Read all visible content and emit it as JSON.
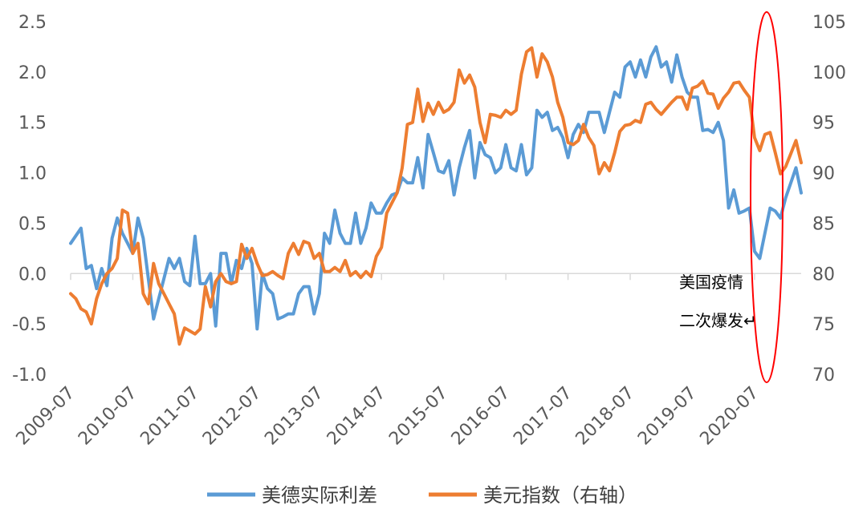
{
  "chart_data": {
    "type": "line",
    "title": "",
    "xlabel": "",
    "ylabel": "",
    "x_tick_labels": [
      "2009-07",
      "2010-07",
      "2011-07",
      "2012-07",
      "2013-07",
      "2014-07",
      "2015-07",
      "2016-07",
      "2017-07",
      "2018-07",
      "2019-07",
      "2020-07"
    ],
    "y_left": {
      "lim": [
        -1.0,
        2.5
      ],
      "ticks": [
        "2.5",
        "2.0",
        "1.5",
        "1.0",
        "0.5",
        "0.0",
        "-0.5",
        "-1.0"
      ]
    },
    "y_right": {
      "lim": [
        70,
        105
      ],
      "ticks": [
        "105",
        "100",
        "95",
        "90",
        "85",
        "80",
        "75",
        "70"
      ]
    },
    "legend_position": "bottom",
    "gridlines": false,
    "series": [
      {
        "name": "美德实际利差",
        "axis": "left",
        "color": "#5B9BD5",
        "points": [
          [
            "2009-07",
            0.3
          ],
          [
            "2009-09",
            0.45
          ],
          [
            "2009-10",
            0.05
          ],
          [
            "2009-11",
            0.08
          ],
          [
            "2009-12",
            -0.15
          ],
          [
            "2010-01",
            0.05
          ],
          [
            "2010-02",
            -0.12
          ],
          [
            "2010-03",
            0.35
          ],
          [
            "2010-04",
            0.55
          ],
          [
            "2010-05",
            0.4
          ],
          [
            "2010-06",
            0.3
          ],
          [
            "2010-07",
            0.2
          ],
          [
            "2010-08",
            0.55
          ],
          [
            "2010-09",
            0.35
          ],
          [
            "2010-10",
            -0.05
          ],
          [
            "2010-11",
            -0.45
          ],
          [
            "2010-12",
            -0.25
          ],
          [
            "2011-01",
            -0.05
          ],
          [
            "2011-02",
            0.15
          ],
          [
            "2011-03",
            0.05
          ],
          [
            "2011-04",
            0.15
          ],
          [
            "2011-05",
            -0.08
          ],
          [
            "2011-06",
            -0.12
          ],
          [
            "2011-07",
            0.37
          ],
          [
            "2011-08",
            -0.1
          ],
          [
            "2011-09",
            -0.1
          ],
          [
            "2011-10",
            0.0
          ],
          [
            "2011-11",
            -0.52
          ],
          [
            "2011-12",
            0.2
          ],
          [
            "2012-01",
            0.2
          ],
          [
            "2012-02",
            -0.1
          ],
          [
            "2012-03",
            0.13
          ],
          [
            "2012-04",
            0.05
          ],
          [
            "2012-05",
            0.25
          ],
          [
            "2012-06",
            0.1
          ],
          [
            "2012-07",
            -0.55
          ],
          [
            "2012-08",
            0.0
          ],
          [
            "2012-09",
            -0.15
          ],
          [
            "2012-10",
            -0.2
          ],
          [
            "2012-11",
            -0.45
          ],
          [
            "2012-12",
            -0.43
          ],
          [
            "2013-01",
            -0.4
          ],
          [
            "2013-02",
            -0.4
          ],
          [
            "2013-03",
            -0.2
          ],
          [
            "2013-04",
            -0.13
          ],
          [
            "2013-05",
            -0.13
          ],
          [
            "2013-06",
            -0.4
          ],
          [
            "2013-07",
            -0.2
          ],
          [
            "2013-08",
            0.4
          ],
          [
            "2013-09",
            0.3
          ],
          [
            "2013-10",
            0.63
          ],
          [
            "2013-11",
            0.4
          ],
          [
            "2013-12",
            0.3
          ],
          [
            "2014-01",
            0.3
          ],
          [
            "2014-02",
            0.6
          ],
          [
            "2014-03",
            0.3
          ],
          [
            "2014-04",
            0.45
          ],
          [
            "2014-05",
            0.7
          ],
          [
            "2014-06",
            0.6
          ],
          [
            "2014-07",
            0.6
          ],
          [
            "2014-08",
            0.7
          ],
          [
            "2014-09",
            0.78
          ],
          [
            "2014-10",
            0.8
          ],
          [
            "2014-11",
            0.95
          ],
          [
            "2014-12",
            0.9
          ],
          [
            "2015-01",
            0.9
          ],
          [
            "2015-02",
            1.15
          ],
          [
            "2015-03",
            0.85
          ],
          [
            "2015-04",
            1.38
          ],
          [
            "2015-05",
            1.2
          ],
          [
            "2015-06",
            1.02
          ],
          [
            "2015-07",
            1.0
          ],
          [
            "2015-08",
            1.12
          ],
          [
            "2015-09",
            0.78
          ],
          [
            "2015-10",
            1.05
          ],
          [
            "2015-11",
            1.25
          ],
          [
            "2015-12",
            1.42
          ],
          [
            "2016-01",
            0.95
          ],
          [
            "2016-02",
            1.3
          ],
          [
            "2016-03",
            1.18
          ],
          [
            "2016-04",
            1.15
          ],
          [
            "2016-05",
            1.0
          ],
          [
            "2016-06",
            1.05
          ],
          [
            "2016-07",
            1.28
          ],
          [
            "2016-08",
            1.05
          ],
          [
            "2016-09",
            1.02
          ],
          [
            "2016-10",
            1.28
          ],
          [
            "2016-11",
            0.98
          ],
          [
            "2016-12",
            1.05
          ],
          [
            "2017-01",
            1.62
          ],
          [
            "2017-02",
            1.55
          ],
          [
            "2017-03",
            1.6
          ],
          [
            "2017-04",
            1.42
          ],
          [
            "2017-05",
            1.45
          ],
          [
            "2017-06",
            1.35
          ],
          [
            "2017-07",
            1.15
          ],
          [
            "2017-08",
            1.38
          ],
          [
            "2017-09",
            1.48
          ],
          [
            "2017-10",
            1.4
          ],
          [
            "2017-11",
            1.6
          ],
          [
            "2017-12",
            1.6
          ],
          [
            "2018-01",
            1.6
          ],
          [
            "2018-02",
            1.4
          ],
          [
            "2018-03",
            1.6
          ],
          [
            "2018-04",
            1.8
          ],
          [
            "2018-05",
            1.75
          ],
          [
            "2018-06",
            2.05
          ],
          [
            "2018-07",
            2.1
          ],
          [
            "2018-08",
            1.95
          ],
          [
            "2018-09",
            2.12
          ],
          [
            "2018-10",
            1.95
          ],
          [
            "2018-11",
            2.15
          ],
          [
            "2018-12",
            2.25
          ],
          [
            "2019-01",
            2.05
          ],
          [
            "2019-02",
            2.1
          ],
          [
            "2019-03",
            1.9
          ],
          [
            "2019-04",
            2.17
          ],
          [
            "2019-05",
            1.95
          ],
          [
            "2019-06",
            1.8
          ],
          [
            "2019-07",
            1.75
          ],
          [
            "2019-08",
            1.75
          ],
          [
            "2019-09",
            1.42
          ],
          [
            "2019-10",
            1.43
          ],
          [
            "2019-11",
            1.4
          ],
          [
            "2019-12",
            1.5
          ],
          [
            "2020-01",
            1.32
          ],
          [
            "2020-02",
            0.65
          ],
          [
            "2020-03",
            0.83
          ],
          [
            "2020-04",
            0.6
          ],
          [
            "2020-05",
            0.62
          ],
          [
            "2020-06",
            0.65
          ],
          [
            "2020-07",
            0.22
          ],
          [
            "2020-08",
            0.15
          ],
          [
            "2020-09",
            0.4
          ],
          [
            "2020-10",
            0.65
          ],
          [
            "2020-11",
            0.62
          ],
          [
            "2020-12",
            0.55
          ],
          [
            "2021-01",
            0.75
          ],
          [
            "2021-02",
            0.9
          ],
          [
            "2021-03",
            1.05
          ],
          [
            "2021-04",
            0.8
          ]
        ]
      },
      {
        "name": "美元指数（右轴）",
        "axis": "right",
        "color": "#ED7D31",
        "points": [
          [
            "2009-07",
            78.0
          ],
          [
            "2009-08",
            77.5
          ],
          [
            "2009-09",
            76.5
          ],
          [
            "2009-10",
            76.2
          ],
          [
            "2009-11",
            75.0
          ],
          [
            "2009-12",
            77.5
          ],
          [
            "2010-01",
            79.0
          ],
          [
            "2010-02",
            80.0
          ],
          [
            "2010-03",
            80.5
          ],
          [
            "2010-04",
            81.5
          ],
          [
            "2010-05",
            86.3
          ],
          [
            "2010-06",
            86.0
          ],
          [
            "2010-07",
            82.0
          ],
          [
            "2010-08",
            83.0
          ],
          [
            "2010-09",
            78.0
          ],
          [
            "2010-10",
            77.0
          ],
          [
            "2010-11",
            81.0
          ],
          [
            "2010-12",
            79.0
          ],
          [
            "2011-01",
            78.0
          ],
          [
            "2011-02",
            77.0
          ],
          [
            "2011-03",
            76.0
          ],
          [
            "2011-04",
            73.0
          ],
          [
            "2011-05",
            74.6
          ],
          [
            "2011-06",
            74.3
          ],
          [
            "2011-07",
            74.0
          ],
          [
            "2011-08",
            74.5
          ],
          [
            "2011-09",
            78.7
          ],
          [
            "2011-10",
            76.7
          ],
          [
            "2011-11",
            79.2
          ],
          [
            "2011-12",
            80.0
          ],
          [
            "2012-01",
            79.2
          ],
          [
            "2012-02",
            79.0
          ],
          [
            "2012-03",
            79.2
          ],
          [
            "2012-04",
            82.9
          ],
          [
            "2012-05",
            81.5
          ],
          [
            "2012-06",
            82.5
          ],
          [
            "2012-07",
            81.0
          ],
          [
            "2012-08",
            79.8
          ],
          [
            "2012-09",
            79.9
          ],
          [
            "2012-10",
            80.2
          ],
          [
            "2012-11",
            79.8
          ],
          [
            "2012-12",
            79.5
          ],
          [
            "2013-01",
            82.0
          ],
          [
            "2013-02",
            83.0
          ],
          [
            "2013-03",
            81.9
          ],
          [
            "2013-04",
            83.2
          ],
          [
            "2013-05",
            83.0
          ],
          [
            "2013-06",
            81.5
          ],
          [
            "2013-07",
            82.0
          ],
          [
            "2013-08",
            80.2
          ],
          [
            "2013-09",
            80.2
          ],
          [
            "2013-10",
            80.6
          ],
          [
            "2013-11",
            80.2
          ],
          [
            "2013-12",
            81.3
          ],
          [
            "2014-01",
            79.8
          ],
          [
            "2014-02",
            80.2
          ],
          [
            "2014-03",
            79.6
          ],
          [
            "2014-04",
            80.2
          ],
          [
            "2014-05",
            79.7
          ],
          [
            "2014-06",
            81.7
          ],
          [
            "2014-07",
            82.6
          ],
          [
            "2014-08",
            86.0
          ],
          [
            "2014-09",
            87.0
          ],
          [
            "2014-10",
            88.0
          ],
          [
            "2014-11",
            90.5
          ],
          [
            "2014-12",
            94.8
          ],
          [
            "2015-01",
            95.0
          ],
          [
            "2015-02",
            98.3
          ],
          [
            "2015-03",
            95.1
          ],
          [
            "2015-04",
            96.9
          ],
          [
            "2015-05",
            95.8
          ],
          [
            "2015-06",
            97.0
          ],
          [
            "2015-07",
            96.0
          ],
          [
            "2015-08",
            96.3
          ],
          [
            "2015-09",
            97.0
          ],
          [
            "2015-10",
            100.2
          ],
          [
            "2015-11",
            98.9
          ],
          [
            "2015-12",
            99.7
          ],
          [
            "2016-01",
            98.5
          ],
          [
            "2016-02",
            95.0
          ],
          [
            "2016-03",
            93.0
          ],
          [
            "2016-04",
            95.8
          ],
          [
            "2016-05",
            95.7
          ],
          [
            "2016-06",
            95.5
          ],
          [
            "2016-07",
            96.2
          ],
          [
            "2016-08",
            95.8
          ],
          [
            "2016-09",
            96.2
          ],
          [
            "2016-10",
            99.8
          ],
          [
            "2016-11",
            102.0
          ],
          [
            "2016-12",
            102.4
          ],
          [
            "2017-01",
            99.5
          ],
          [
            "2017-02",
            101.8
          ],
          [
            "2017-03",
            101.0
          ],
          [
            "2017-04",
            99.5
          ],
          [
            "2017-05",
            97.0
          ],
          [
            "2017-06",
            95.5
          ],
          [
            "2017-07",
            93.0
          ],
          [
            "2017-08",
            92.8
          ],
          [
            "2017-09",
            93.2
          ],
          [
            "2017-10",
            94.8
          ],
          [
            "2017-11",
            93.5
          ],
          [
            "2017-12",
            92.7
          ],
          [
            "2018-01",
            89.9
          ],
          [
            "2018-02",
            91.0
          ],
          [
            "2018-03",
            90.2
          ],
          [
            "2018-04",
            92.0
          ],
          [
            "2018-05",
            94.1
          ],
          [
            "2018-06",
            94.7
          ],
          [
            "2018-07",
            94.8
          ],
          [
            "2018-08",
            95.2
          ],
          [
            "2018-09",
            95.0
          ],
          [
            "2018-10",
            96.8
          ],
          [
            "2018-11",
            97.0
          ],
          [
            "2018-12",
            96.3
          ],
          [
            "2019-01",
            95.8
          ],
          [
            "2019-02",
            96.4
          ],
          [
            "2019-03",
            97.0
          ],
          [
            "2019-04",
            97.5
          ],
          [
            "2019-05",
            97.5
          ],
          [
            "2019-06",
            96.3
          ],
          [
            "2019-07",
            98.4
          ],
          [
            "2019-08",
            98.6
          ],
          [
            "2019-09",
            99.1
          ],
          [
            "2019-10",
            97.9
          ],
          [
            "2019-11",
            97.8
          ],
          [
            "2019-12",
            96.4
          ],
          [
            "2020-01",
            97.4
          ],
          [
            "2020-02",
            98.0
          ],
          [
            "2020-03",
            98.9
          ],
          [
            "2020-04",
            99.0
          ],
          [
            "2020-05",
            98.2
          ],
          [
            "2020-06",
            97.5
          ],
          [
            "2020-07",
            93.5
          ],
          [
            "2020-08",
            92.2
          ],
          [
            "2020-09",
            93.8
          ],
          [
            "2020-10",
            94.0
          ],
          [
            "2020-11",
            92.0
          ],
          [
            "2020-12",
            89.9
          ],
          [
            "2021-01",
            90.6
          ],
          [
            "2021-02",
            91.9
          ],
          [
            "2021-03",
            93.2
          ],
          [
            "2021-04",
            91.0
          ]
        ]
      }
    ],
    "annotations": [
      {
        "text_lines": [
          "美国疫情",
          "二次爆发↵"
        ],
        "highlight": "red ellipse around 2020-07 to 2020-12"
      }
    ]
  }
}
